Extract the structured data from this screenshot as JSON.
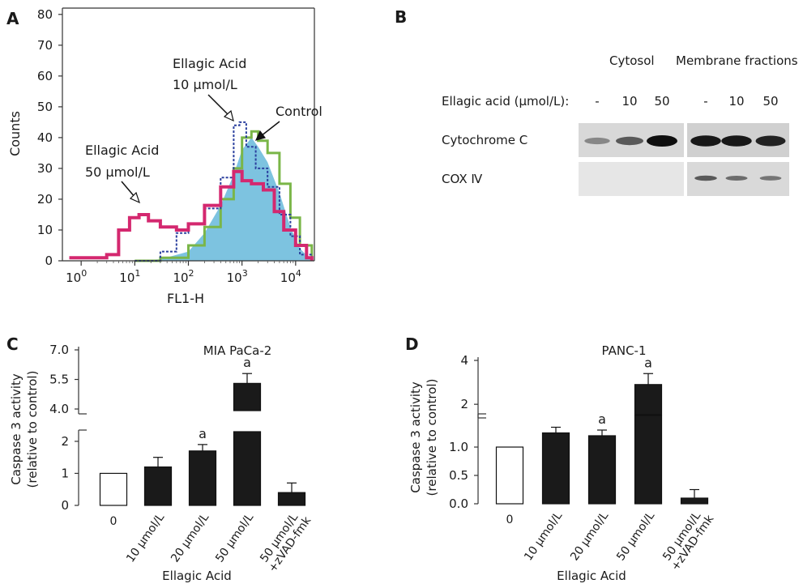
{
  "panels": {
    "a": "A",
    "b": "B",
    "c": "C",
    "d": "D"
  },
  "chart_data": [
    {
      "panel": "A",
      "type": "line",
      "xlabel": "FL1-H",
      "ylabel": "Counts",
      "x_scale": "log",
      "x_ticks": [
        "10^0",
        "10^1",
        "10^2",
        "10^3",
        "10^4"
      ],
      "y_ticks": [
        "0",
        "10",
        "20",
        "30",
        "40",
        "50",
        "60",
        "70",
        "80"
      ],
      "ylim": [
        0,
        80
      ],
      "annotations": {
        "ea10_line1": "Ellagic Acid",
        "ea10_line2": "10 μmol/L",
        "ea50_line1": "Ellagic Acid",
        "ea50_line2": "50 μmol/L",
        "control": "Control"
      },
      "series": [
        {
          "name": "Control",
          "color": "#7dc3e0",
          "x": [
            10,
            30,
            100,
            200,
            400,
            700,
            1000,
            1500,
            2000,
            3000,
            5000,
            8000,
            12000,
            20000
          ],
          "y": [
            0,
            0.5,
            3,
            9,
            18,
            28,
            36,
            40,
            37,
            32,
            22,
            11,
            4,
            0
          ]
        },
        {
          "name": "Control outline",
          "color": "#7ab648",
          "x": [
            10,
            30,
            100,
            200,
            400,
            700,
            1000,
            1500,
            2000,
            3000,
            5000,
            8000,
            12000,
            20000
          ],
          "y": [
            0,
            1,
            5,
            11,
            20,
            30,
            40,
            42,
            39,
            35,
            25,
            14,
            5,
            0
          ]
        },
        {
          "name": "Ellagic Acid 10 μmol/L",
          "color": "#2a3f9e",
          "x": [
            10,
            30,
            60,
            100,
            200,
            400,
            700,
            900,
            1200,
            1800,
            3000,
            5000,
            8000,
            12000,
            20000
          ],
          "y": [
            0,
            3,
            9,
            12,
            17,
            27,
            44,
            45,
            37,
            30,
            24,
            15,
            8,
            2,
            0
          ]
        },
        {
          "name": "Ellagic Acid 50 μmol/L",
          "color": "#d4286f",
          "x": [
            0.6,
            1.5,
            3,
            5,
            8,
            12,
            18,
            30,
            60,
            100,
            200,
            400,
            700,
            1000,
            1500,
            2500,
            4000,
            6000,
            10000,
            16000,
            20000
          ],
          "y": [
            1,
            1,
            2,
            10,
            14,
            15,
            13,
            11,
            10,
            12,
            18,
            24,
            29,
            26,
            25,
            23,
            16,
            10,
            5,
            1,
            0
          ]
        }
      ]
    },
    {
      "panel": "B",
      "type": "table",
      "headers": {
        "cytosol": "Cytosol",
        "membrane": "Membrane fractions"
      },
      "row_label": "Ellagic acid (μmol/L):",
      "lanes": [
        "-",
        "10",
        "50",
        "-",
        "10",
        "50"
      ],
      "rows": [
        {
          "name": "Cytochrome C",
          "intensity": [
            0.35,
            0.6,
            1.0,
            0.95,
            0.95,
            0.9
          ]
        },
        {
          "name": "COX Ⅳ",
          "intensity": [
            0.0,
            0.0,
            0.0,
            0.6,
            0.5,
            0.45
          ]
        }
      ]
    },
    {
      "panel": "C",
      "type": "bar",
      "title": "MIA PaCa-2",
      "ylabel_line1": "Caspase 3 activity",
      "ylabel_line2": "(relative to control)",
      "xlabel": "Ellagic Acid",
      "y_axis_break": true,
      "y_ticks_lower": [
        "0",
        "1",
        "2"
      ],
      "y_ticks_upper": [
        "4.0",
        "5.5",
        "7.0"
      ],
      "categories": [
        "0",
        "10 μmol/L",
        "20 μmol/L",
        "50 μmol/L",
        "50 μmol/L"
      ],
      "category_line2": [
        "",
        "",
        "",
        "",
        "+zVAD-fmk"
      ],
      "values": [
        1.0,
        1.2,
        1.7,
        5.3,
        0.4
      ],
      "errors": [
        0,
        0.3,
        0.2,
        0.5,
        0.3
      ],
      "fills": [
        "#ffffff",
        "#1a1a1a",
        "#1a1a1a",
        "#1a1a1a",
        "#1a1a1a"
      ],
      "significance": [
        "",
        "",
        "a",
        "a",
        ""
      ]
    },
    {
      "panel": "D",
      "type": "bar",
      "title": "PANC-1",
      "ylabel_line1": "Caspase 3 activity",
      "ylabel_line2": "(relative to control)",
      "xlabel": "Ellagic Acid",
      "y_axis_break": true,
      "y_ticks_lower": [
        "0.0",
        "0.5",
        "1.0"
      ],
      "y_ticks_upper": [
        "2",
        "4"
      ],
      "categories": [
        "0",
        "10 μmol/L",
        "20 μmol/L",
        "50 μmol/L",
        "50 μmol/L"
      ],
      "category_line2": [
        "",
        "",
        "",
        "",
        "+zVAD-fmk"
      ],
      "values": [
        1.0,
        1.25,
        1.2,
        2.9,
        0.1
      ],
      "errors": [
        0,
        0.1,
        0.1,
        0.5,
        0.15
      ],
      "fills": [
        "#ffffff",
        "#1a1a1a",
        "#1a1a1a",
        "#1a1a1a",
        "#1a1a1a"
      ],
      "significance": [
        "",
        "",
        "a",
        "a",
        ""
      ]
    }
  ]
}
